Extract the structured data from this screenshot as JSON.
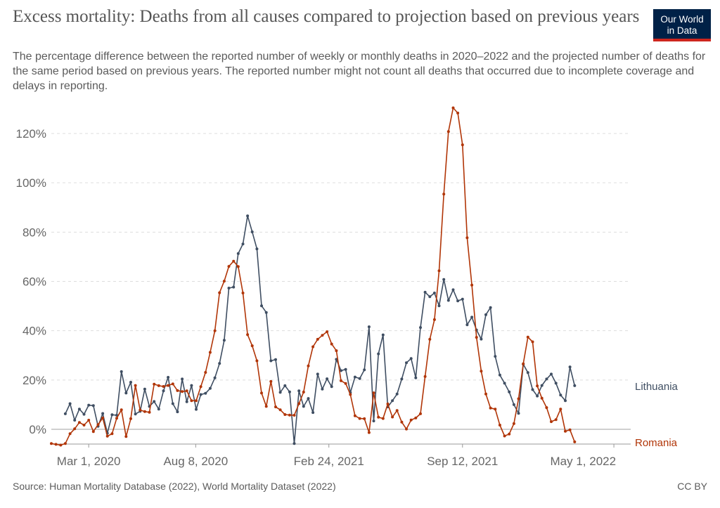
{
  "header": {
    "title": "Excess mortality: Deaths from all causes compared to projection based on previous years",
    "subtitle": "The percentage difference between the reported number of weekly or monthly deaths in 2020–2022 and the projected number of deaths for the same period based on previous years. The reported number might not count all deaths that occurred due to incomplete coverage and delays in reporting."
  },
  "logo": {
    "line1": "Our World",
    "line2": "in Data"
  },
  "footer": {
    "source": "Source: Human Mortality Database (2022), World Mortality Dataset (2022)",
    "license": "CC BY"
  },
  "colors": {
    "lithuania": "#3f4e62",
    "romania": "#b13507",
    "grid": "#dddddd",
    "axis": "#999999",
    "label": "#666666"
  },
  "chart_data": {
    "type": "line",
    "title": "Excess mortality: Deaths from all causes compared to projection based on previous years",
    "xlabel": "",
    "ylabel": "",
    "x_unit": "weeks since 2020-01-05",
    "xlim": [
      0,
      124
    ],
    "ylim": [
      -8,
      132
    ],
    "yticks": [
      0,
      20,
      40,
      60,
      80,
      100,
      120
    ],
    "ytick_labels": [
      "0%",
      "20%",
      "40%",
      "60%",
      "80%",
      "100%",
      "120%"
    ],
    "xticks": [
      {
        "label": "Mar 1, 2020",
        "x": 8
      },
      {
        "label": "Aug 8, 2020",
        "x": 30.9
      },
      {
        "label": "Feb 24, 2021",
        "x": 59.4
      },
      {
        "label": "Sep 12, 2021",
        "x": 88
      },
      {
        "label": "May 1, 2022",
        "x": 120.4
      }
    ],
    "series": [
      {
        "name": "Lithuania",
        "label": "Lithuania",
        "x_start": 3,
        "values": [
          6.3,
          10.4,
          3.7,
          8.2,
          6.1,
          9.8,
          9.6,
          1.2,
          6.4,
          -1.6,
          5.9,
          5.7,
          23.4,
          14.7,
          19.1,
          6.2,
          7.3,
          16.3,
          9.3,
          11.3,
          8.2,
          15.6,
          21.1,
          10.4,
          7.1,
          20.4,
          11.2,
          17.8,
          8.1,
          14.1,
          14.6,
          16.6,
          20.9,
          26.7,
          36.1,
          57.3,
          57.7,
          71.3,
          75.2,
          86.6,
          80.1,
          73.2,
          50.1,
          47.4,
          27.8,
          28.3,
          15.0,
          17.7,
          15.2,
          -5.8,
          15.6,
          9.3,
          12.5,
          6.8,
          22.4,
          16.3,
          20.5,
          17.3,
          28.4,
          23.8,
          24.3,
          14.9,
          21.2,
          20.6,
          24.1,
          41.6,
          3.4,
          30.6,
          38.3,
          9.1,
          11.6,
          14.3,
          20.4,
          27.0,
          28.7,
          20.9,
          41.3,
          55.6,
          53.8,
          55.3,
          50.1,
          60.8,
          52.3,
          56.6,
          52.1,
          52.8,
          42.4,
          45.5,
          40.3,
          36.6,
          46.5,
          49.4,
          29.6,
          22.0,
          18.7,
          15.2,
          10.0,
          6.5,
          26.4,
          23.0,
          16.1,
          13.5,
          17.8,
          20.4,
          22.4,
          18.7,
          13.9,
          11.6,
          25.3,
          17.7
        ]
      },
      {
        "name": "Romania",
        "label": "Romania",
        "x_start": 0,
        "values": [
          -5.8,
          -6.1,
          -6.4,
          -5.8,
          -1.8,
          0.2,
          2.8,
          1.7,
          3.7,
          -0.9,
          1.9,
          4.6,
          -2.8,
          -1.8,
          4.5,
          7.9,
          -2.9,
          4.3,
          17.8,
          7.8,
          7.2,
          6.9,
          18.3,
          17.7,
          17.4,
          17.8,
          18.4,
          15.7,
          15.3,
          15.6,
          11.6,
          11.6,
          17.3,
          23.1,
          31.2,
          40.0,
          55.4,
          60.1,
          66.1,
          68.2,
          66.0,
          55.3,
          38.4,
          33.9,
          27.8,
          14.7,
          9.3,
          19.4,
          9.1,
          7.9,
          6.0,
          5.8,
          5.7,
          10.4,
          15.1,
          25.7,
          33.5,
          36.5,
          38.1,
          39.6,
          34.6,
          31.9,
          19.7,
          18.6,
          14.1,
          5.5,
          4.4,
          4.3,
          -1.3,
          14.8,
          4.9,
          4.4,
          10.3,
          5.0,
          7.6,
          2.9,
          0.1,
          3.8,
          4.6,
          6.3,
          21.4,
          36.5,
          44.5,
          64.3,
          95.4,
          120.8,
          130.4,
          128.3,
          115.4,
          77.7,
          58.5,
          37.3,
          23.6,
          14.3,
          8.6,
          8.2,
          1.7,
          -2.7,
          -1.9,
          2.3,
          12.4,
          26.6,
          37.4,
          35.5,
          17.6,
          12.6,
          8.8,
          3.1,
          3.9,
          8.2,
          -0.8,
          -0.2,
          -5.1
        ]
      }
    ]
  }
}
